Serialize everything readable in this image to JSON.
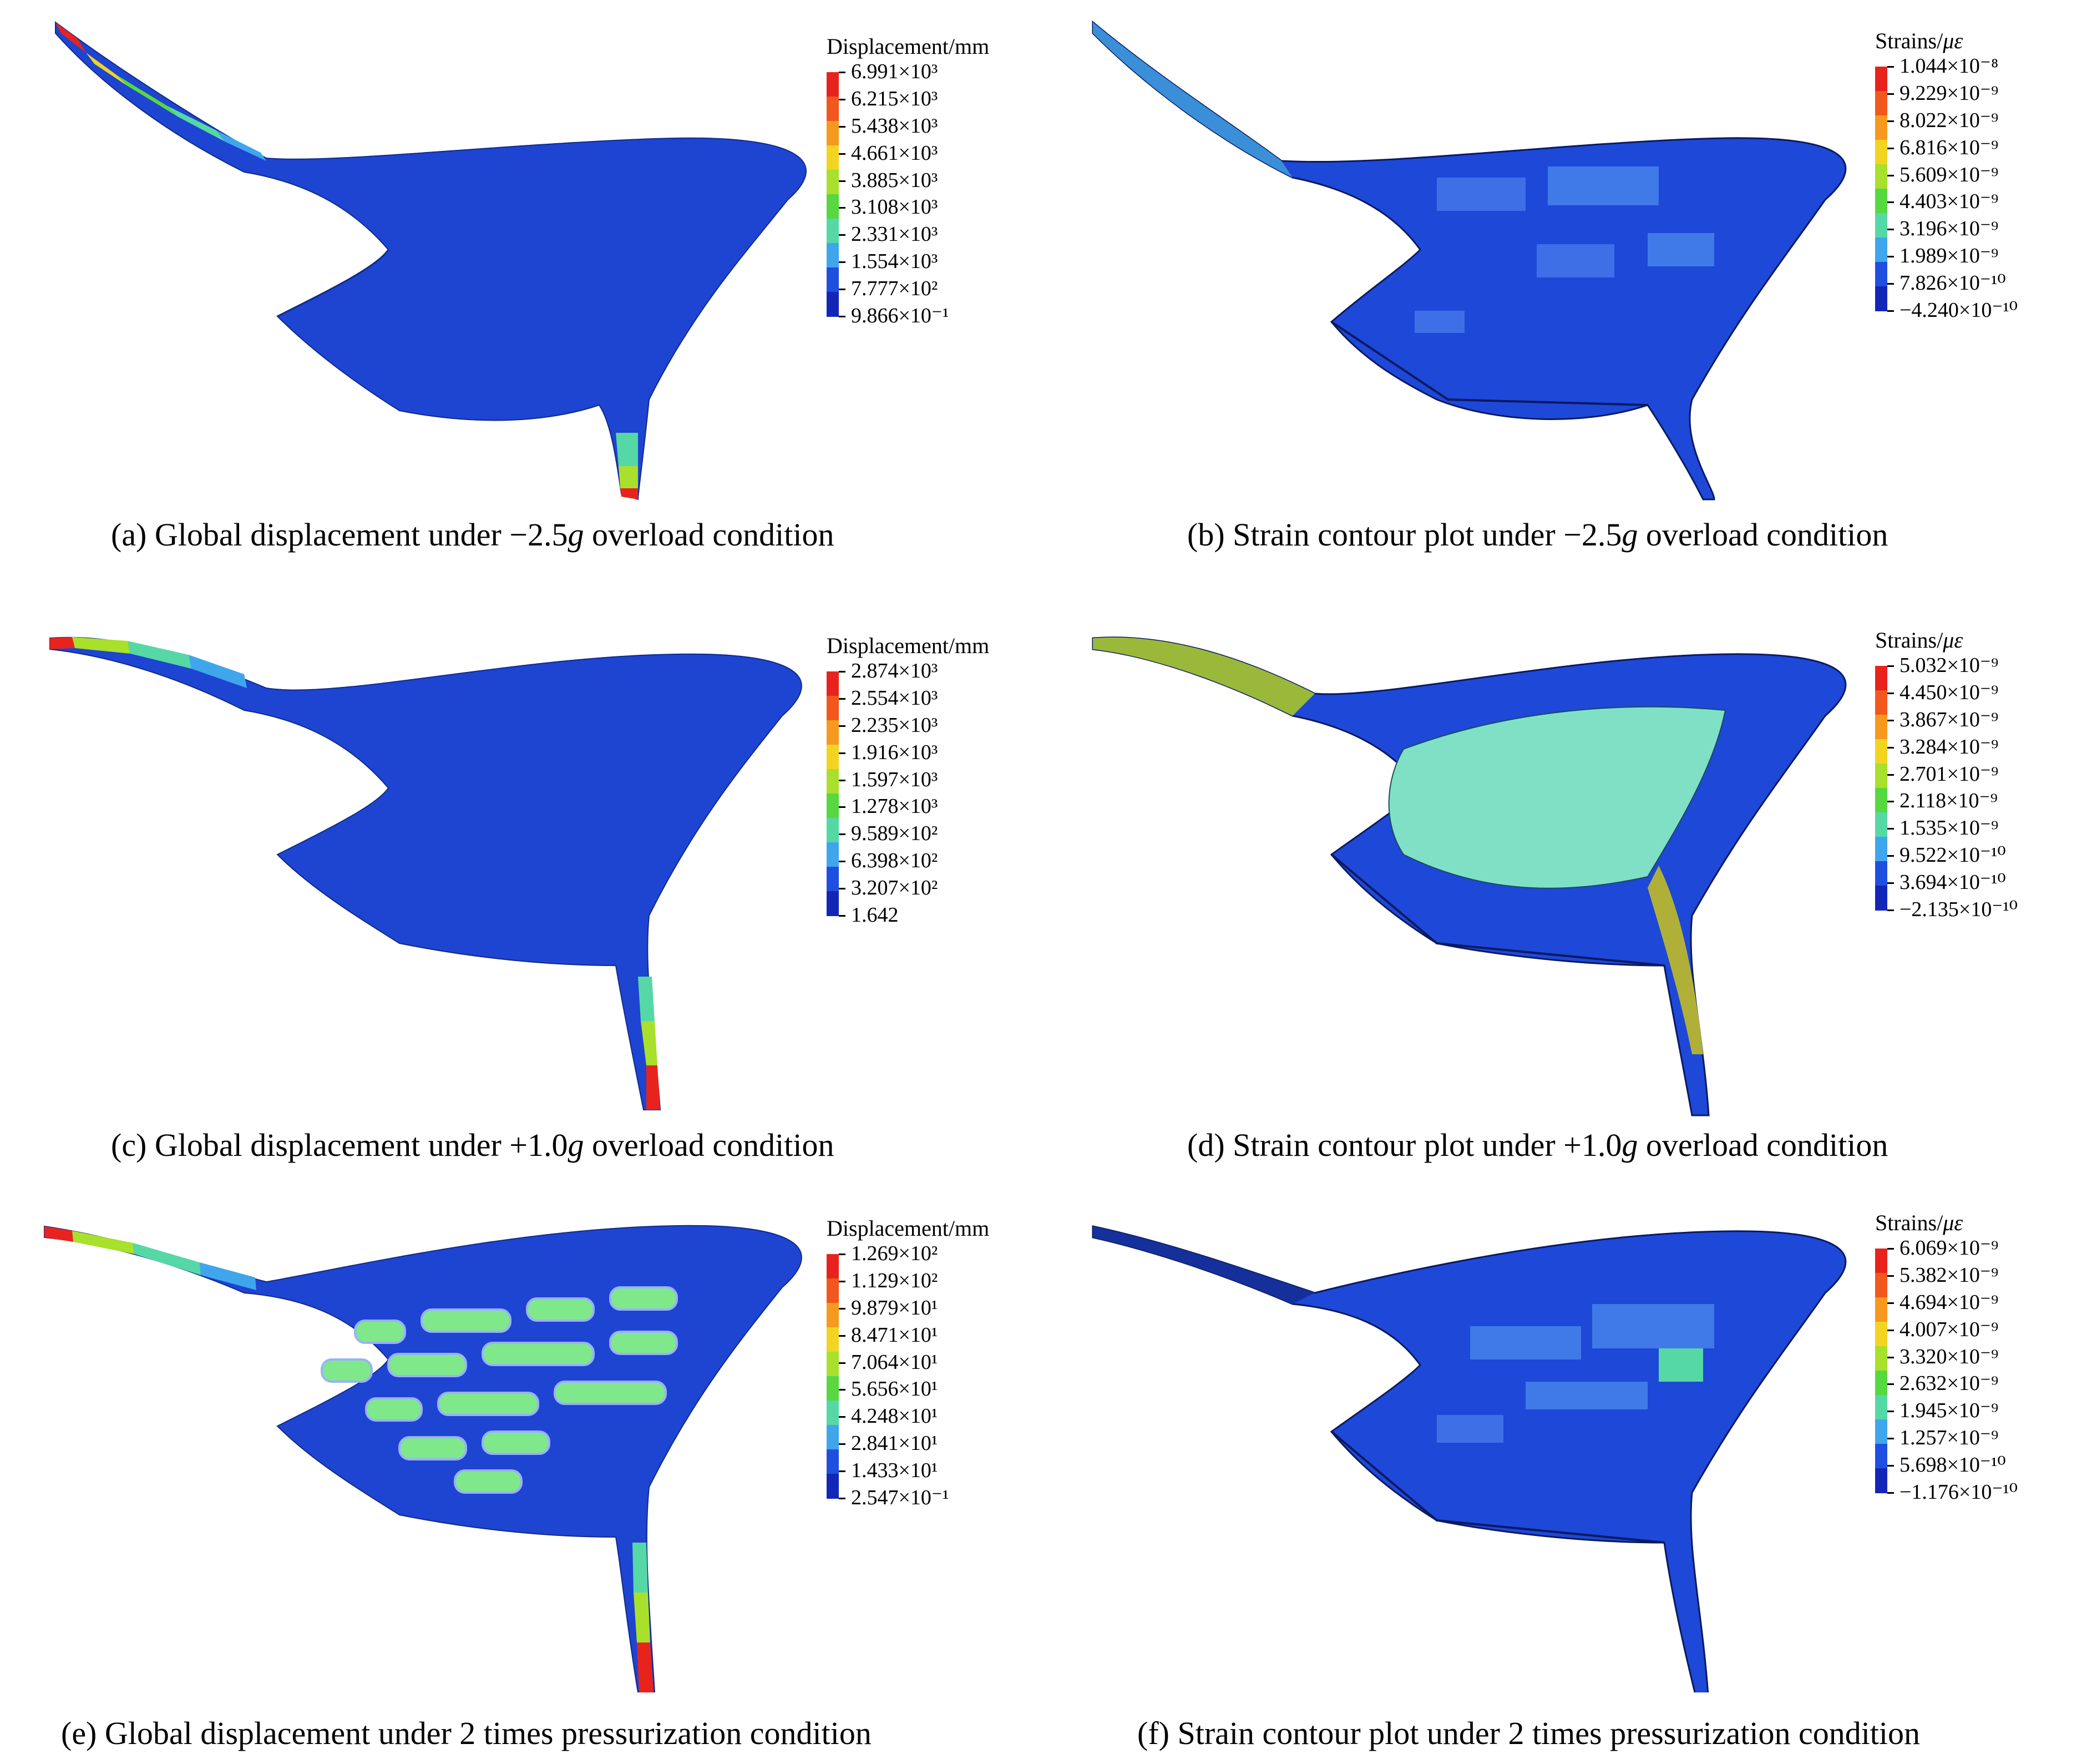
{
  "colorscale": [
    "#e8231e",
    "#f2571d",
    "#f59a1e",
    "#f2d423",
    "#a8e02c",
    "#57d840",
    "#55d8a6",
    "#3fa6ec",
    "#1f4fe0",
    "#1226b8"
  ],
  "panels": [
    {
      "id": "a",
      "caption": "(a) Global displacement under −2.5g overload condition",
      "legend_title": "Displacement/mm",
      "labels": [
        "6.991×10³",
        "6.215×10³",
        "5.438×10³",
        "4.661×10³",
        "3.885×10³",
        "3.108×10³",
        "2.331×10³",
        "1.554×10³",
        "7.777×10²",
        "9.866×10⁻¹"
      ]
    },
    {
      "id": "b",
      "caption": "(b) Strain contour plot under −2.5g overload condition",
      "legend_title": "Strains/με",
      "labels": [
        "1.044×10⁻⁸",
        "9.229×10⁻⁹",
        "8.022×10⁻⁹",
        "6.816×10⁻⁹",
        "5.609×10⁻⁹",
        "4.403×10⁻⁹",
        "3.196×10⁻⁹",
        "1.989×10⁻⁹",
        "7.826×10⁻¹⁰",
        "−4.240×10⁻¹⁰"
      ]
    },
    {
      "id": "c",
      "caption": "(c) Global displacement under +1.0g overload condition",
      "legend_title": "Displacement/mm",
      "labels": [
        "2.874×10³",
        "2.554×10³",
        "2.235×10³",
        "1.916×10³",
        "1.597×10³",
        "1.278×10³",
        "9.589×10²",
        "6.398×10²",
        "3.207×10²",
        "1.642"
      ]
    },
    {
      "id": "d",
      "caption": "(d) Strain contour plot under +1.0g overload condition",
      "legend_title": "Strains/με",
      "labels": [
        "5.032×10⁻⁹",
        "4.450×10⁻⁹",
        "3.867×10⁻⁹",
        "3.284×10⁻⁹",
        "2.701×10⁻⁹",
        "2.118×10⁻⁹",
        "1.535×10⁻⁹",
        "9.522×10⁻¹⁰",
        "3.694×10⁻¹⁰",
        "−2.135×10⁻¹⁰"
      ]
    },
    {
      "id": "e",
      "caption": "(e) Global displacement under 2 times pressurization condition",
      "legend_title": "Displacement/mm",
      "labels": [
        "1.269×10²",
        "1.129×10²",
        "9.879×10¹",
        "8.471×10¹",
        "7.064×10¹",
        "5.656×10¹",
        "4.248×10¹",
        "2.841×10¹",
        "1.433×10¹",
        "2.547×10⁻¹"
      ]
    },
    {
      "id": "f",
      "caption": "(f) Strain contour plot under 2 times pressurization condition",
      "legend_title": "Strains/με",
      "labels": [
        "6.069×10⁻⁹",
        "5.382×10⁻⁹",
        "4.694×10⁻⁹",
        "4.007×10⁻⁹",
        "3.320×10⁻⁹",
        "2.632×10⁻⁹",
        "1.945×10⁻⁹",
        "1.257×10⁻⁹",
        "5.698×10⁻¹⁰",
        "−1.176×10⁻¹⁰"
      ]
    }
  ]
}
